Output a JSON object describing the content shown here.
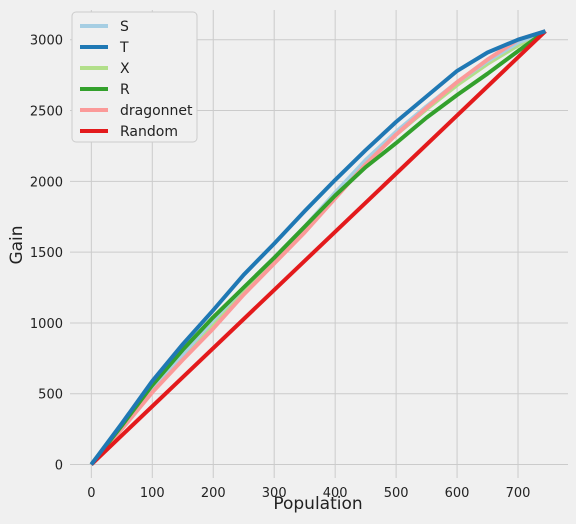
{
  "chart_data": {
    "type": "line",
    "title": "",
    "xlabel": "Population",
    "ylabel": "Gain",
    "xlim": [
      -35,
      782
    ],
    "ylim": [
      -95,
      3210
    ],
    "xticks": [
      0,
      100,
      200,
      300,
      400,
      500,
      600,
      700
    ],
    "yticks": [
      0,
      500,
      1000,
      1500,
      2000,
      2500,
      3000
    ],
    "grid": true,
    "legend_position": "top-left",
    "series": [
      {
        "name": "S",
        "color": "#a6cee3",
        "x": [
          0,
          50,
          100,
          150,
          200,
          250,
          300,
          350,
          400,
          450,
          500,
          550,
          600,
          650,
          700,
          745
        ],
        "values": [
          0,
          270,
          540,
          780,
          1020,
          1250,
          1460,
          1680,
          1920,
          2150,
          2350,
          2530,
          2700,
          2850,
          2980,
          3060
        ]
      },
      {
        "name": "T",
        "color": "#1f78b4",
        "x": [
          0,
          50,
          100,
          150,
          200,
          250,
          300,
          350,
          400,
          450,
          500,
          550,
          600,
          650,
          700,
          745
        ],
        "values": [
          0,
          290,
          590,
          850,
          1090,
          1340,
          1560,
          1790,
          2010,
          2220,
          2420,
          2600,
          2780,
          2910,
          3000,
          3060
        ]
      },
      {
        "name": "X",
        "color": "#b2df8a",
        "x": [
          0,
          50,
          100,
          150,
          200,
          250,
          300,
          350,
          400,
          450,
          500,
          550,
          600,
          650,
          700,
          745
        ],
        "values": [
          0,
          270,
          540,
          770,
          1000,
          1220,
          1430,
          1660,
          1920,
          2120,
          2330,
          2510,
          2680,
          2830,
          2960,
          3060
        ]
      },
      {
        "name": "R",
        "color": "#33a02c",
        "x": [
          0,
          50,
          100,
          150,
          200,
          250,
          300,
          350,
          400,
          450,
          500,
          550,
          600,
          650,
          700,
          745
        ],
        "values": [
          0,
          275,
          560,
          810,
          1040,
          1250,
          1460,
          1680,
          1900,
          2100,
          2270,
          2450,
          2610,
          2760,
          2920,
          3060
        ]
      },
      {
        "name": "dragonnet",
        "color": "#fb9a99",
        "x": [
          0,
          50,
          100,
          150,
          200,
          250,
          300,
          350,
          400,
          450,
          500,
          550,
          600,
          650,
          700,
          745
        ],
        "values": [
          0,
          250,
          510,
          740,
          960,
          1200,
          1420,
          1640,
          1880,
          2120,
          2330,
          2520,
          2700,
          2860,
          3000,
          3060
        ]
      },
      {
        "name": "Random",
        "color": "#e31a1c",
        "x": [
          0,
          745
        ],
        "values": [
          0,
          3060
        ]
      }
    ]
  }
}
